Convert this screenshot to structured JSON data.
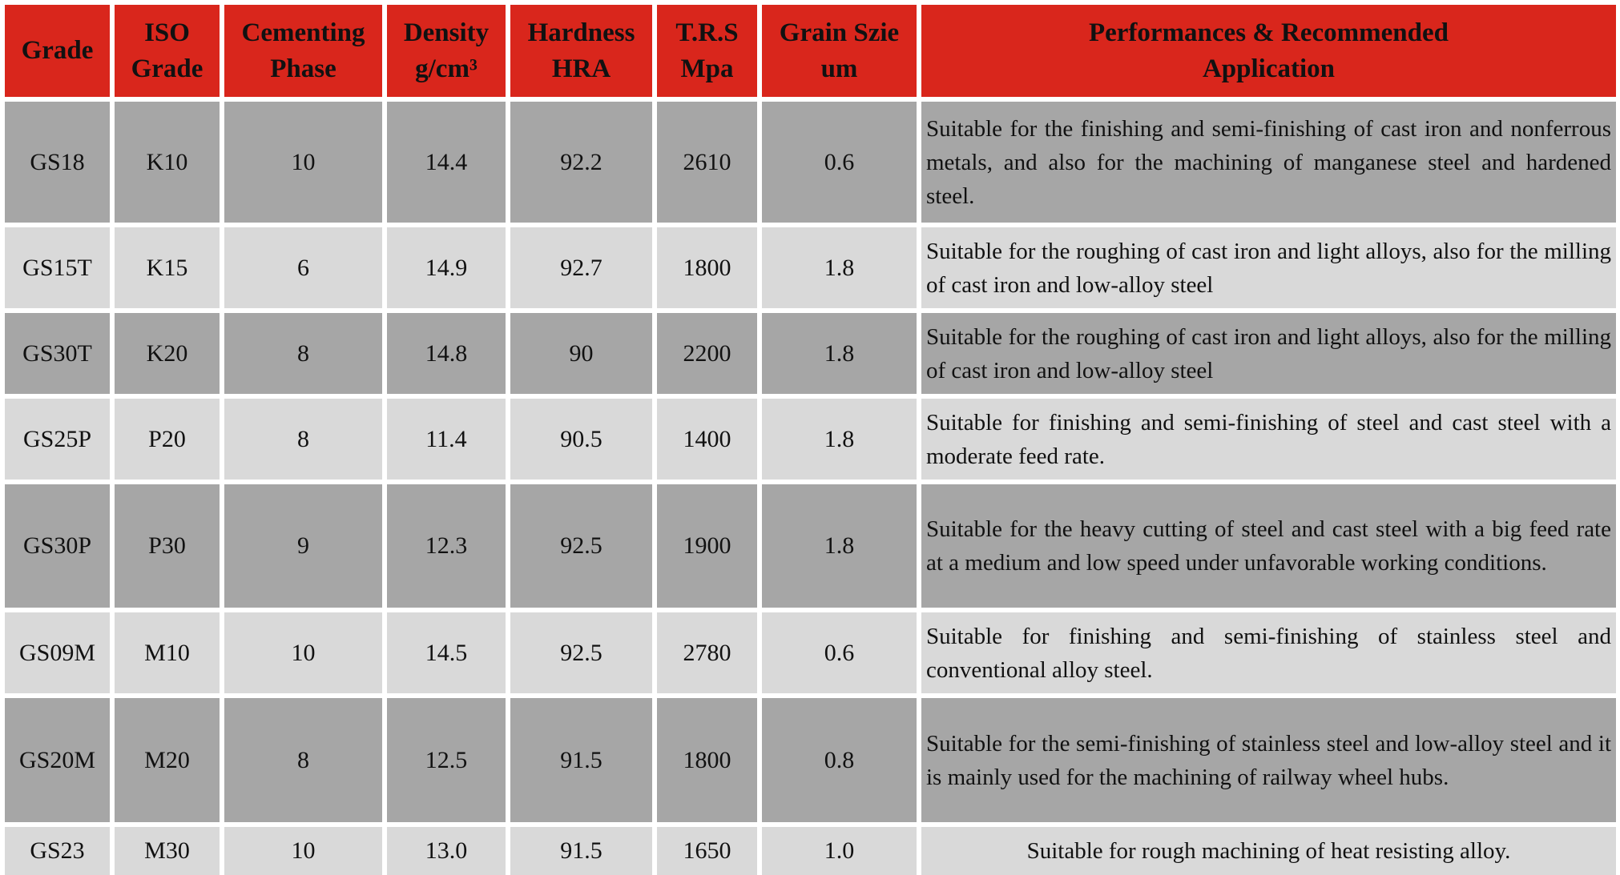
{
  "colors": {
    "header": "#d9261c",
    "row_dark": "#a6a6a6",
    "row_light": "#d9d9d9"
  },
  "headers": [
    "Grade",
    "ISO Grade",
    "Cementing Phase",
    "Density g/cm³",
    "Hardness HRA",
    "T.R.S Mpa",
    "Grain Szie um",
    "Performances & Recommended Application"
  ],
  "rows": [
    [
      "GS18",
      "K10",
      "10",
      "14.4",
      "92.2",
      "2610",
      "0.6",
      "Suitable for the finishing and semi-finishing of cast iron and nonferrous metals, and also for the machining of manganese steel and hardened steel."
    ],
    [
      "GS15T",
      "K15",
      "6",
      "14.9",
      "92.7",
      "1800",
      "1.8",
      "Suitable for the roughing of cast iron and light alloys, also for the milling of cast iron and low-alloy steel"
    ],
    [
      "GS30T",
      "K20",
      "8",
      "14.8",
      "90",
      "2200",
      "1.8",
      "Suitable for the roughing of cast iron and light alloys, also for the milling of cast iron and low-alloy steel"
    ],
    [
      "GS25P",
      "P20",
      "8",
      "11.4",
      "90.5",
      "1400",
      "1.8",
      "Suitable for finishing and semi-finishing of steel and cast steel with a moderate feed rate."
    ],
    [
      "GS30P",
      "P30",
      "9",
      "12.3",
      "92.5",
      "1900",
      "1.8",
      "Suitable for the heavy cutting of steel and cast steel with a big feed rate at a medium and low speed under unfavorable working conditions."
    ],
    [
      "GS09M",
      "M10",
      "10",
      "14.5",
      "92.5",
      "2780",
      "0.6",
      "Suitable for finishing and semi-finishing of stainless steel and conventional alloy steel."
    ],
    [
      "GS20M",
      "M20",
      "8",
      "12.5",
      "91.5",
      "1800",
      "0.8",
      "Suitable for the semi-finishing of stainless steel and low-alloy steel and it is mainly used for the machining of railway wheel hubs."
    ],
    [
      "GS23",
      "M30",
      "10",
      "13.0",
      "91.5",
      "1650",
      "1.0",
      "Suitable for rough machining of heat resisting alloy."
    ]
  ]
}
